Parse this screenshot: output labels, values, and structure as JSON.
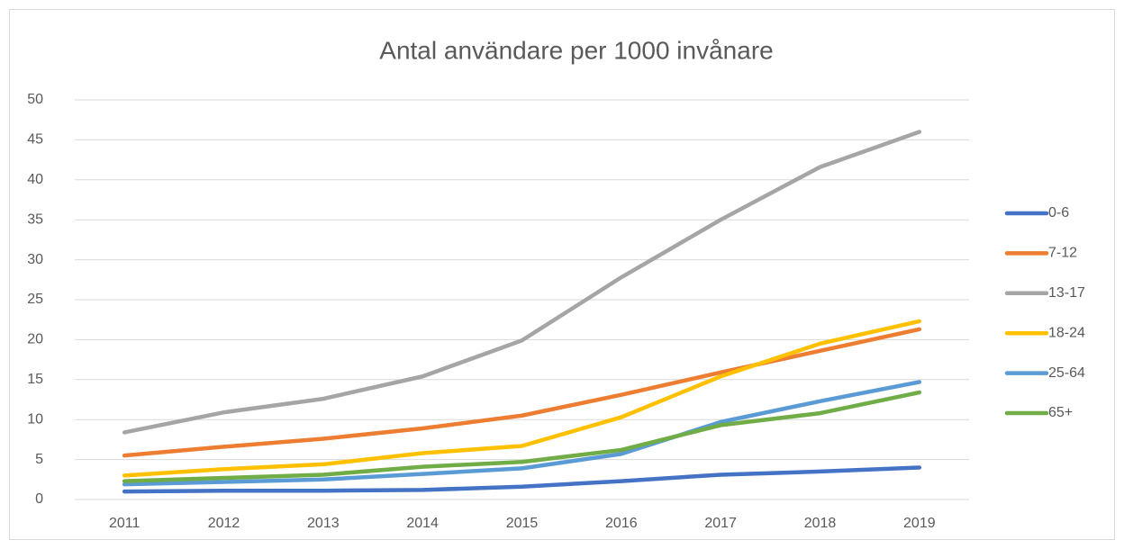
{
  "chart_data": {
    "type": "line",
    "title": "Antal användare per 1000 invånare",
    "categories": [
      "2011",
      "2012",
      "2013",
      "2014",
      "2015",
      "2016",
      "2017",
      "2018",
      "2019"
    ],
    "series": [
      {
        "name": "0-6",
        "color": "#4472c4",
        "values": [
          1.0,
          1.1,
          1.1,
          1.2,
          1.6,
          2.3,
          3.1,
          3.5,
          4.0
        ]
      },
      {
        "name": "7-12",
        "color": "#ed7d31",
        "values": [
          5.5,
          6.6,
          7.6,
          8.9,
          10.5,
          13.1,
          15.9,
          18.6,
          21.3
        ]
      },
      {
        "name": "13-17",
        "color": "#a5a5a5",
        "values": [
          8.4,
          10.9,
          12.6,
          15.4,
          19.9,
          27.8,
          35.0,
          41.6,
          46.0
        ]
      },
      {
        "name": "18-24",
        "color": "#ffc000",
        "values": [
          3.0,
          3.8,
          4.4,
          5.8,
          6.7,
          10.3,
          15.4,
          19.5,
          22.3
        ]
      },
      {
        "name": "25-64",
        "color": "#5b9bd5",
        "values": [
          1.9,
          2.2,
          2.5,
          3.2,
          3.9,
          5.7,
          9.7,
          12.3,
          14.7
        ]
      },
      {
        "name": "65+",
        "color": "#70ad47",
        "values": [
          2.3,
          2.7,
          3.1,
          4.1,
          4.7,
          6.2,
          9.3,
          10.8,
          13.4
        ]
      }
    ],
    "ylim": [
      0,
      50
    ],
    "yticks": [
      0,
      5,
      10,
      15,
      20,
      25,
      30,
      35,
      40,
      45,
      50
    ],
    "grid": true,
    "legend": "right"
  }
}
